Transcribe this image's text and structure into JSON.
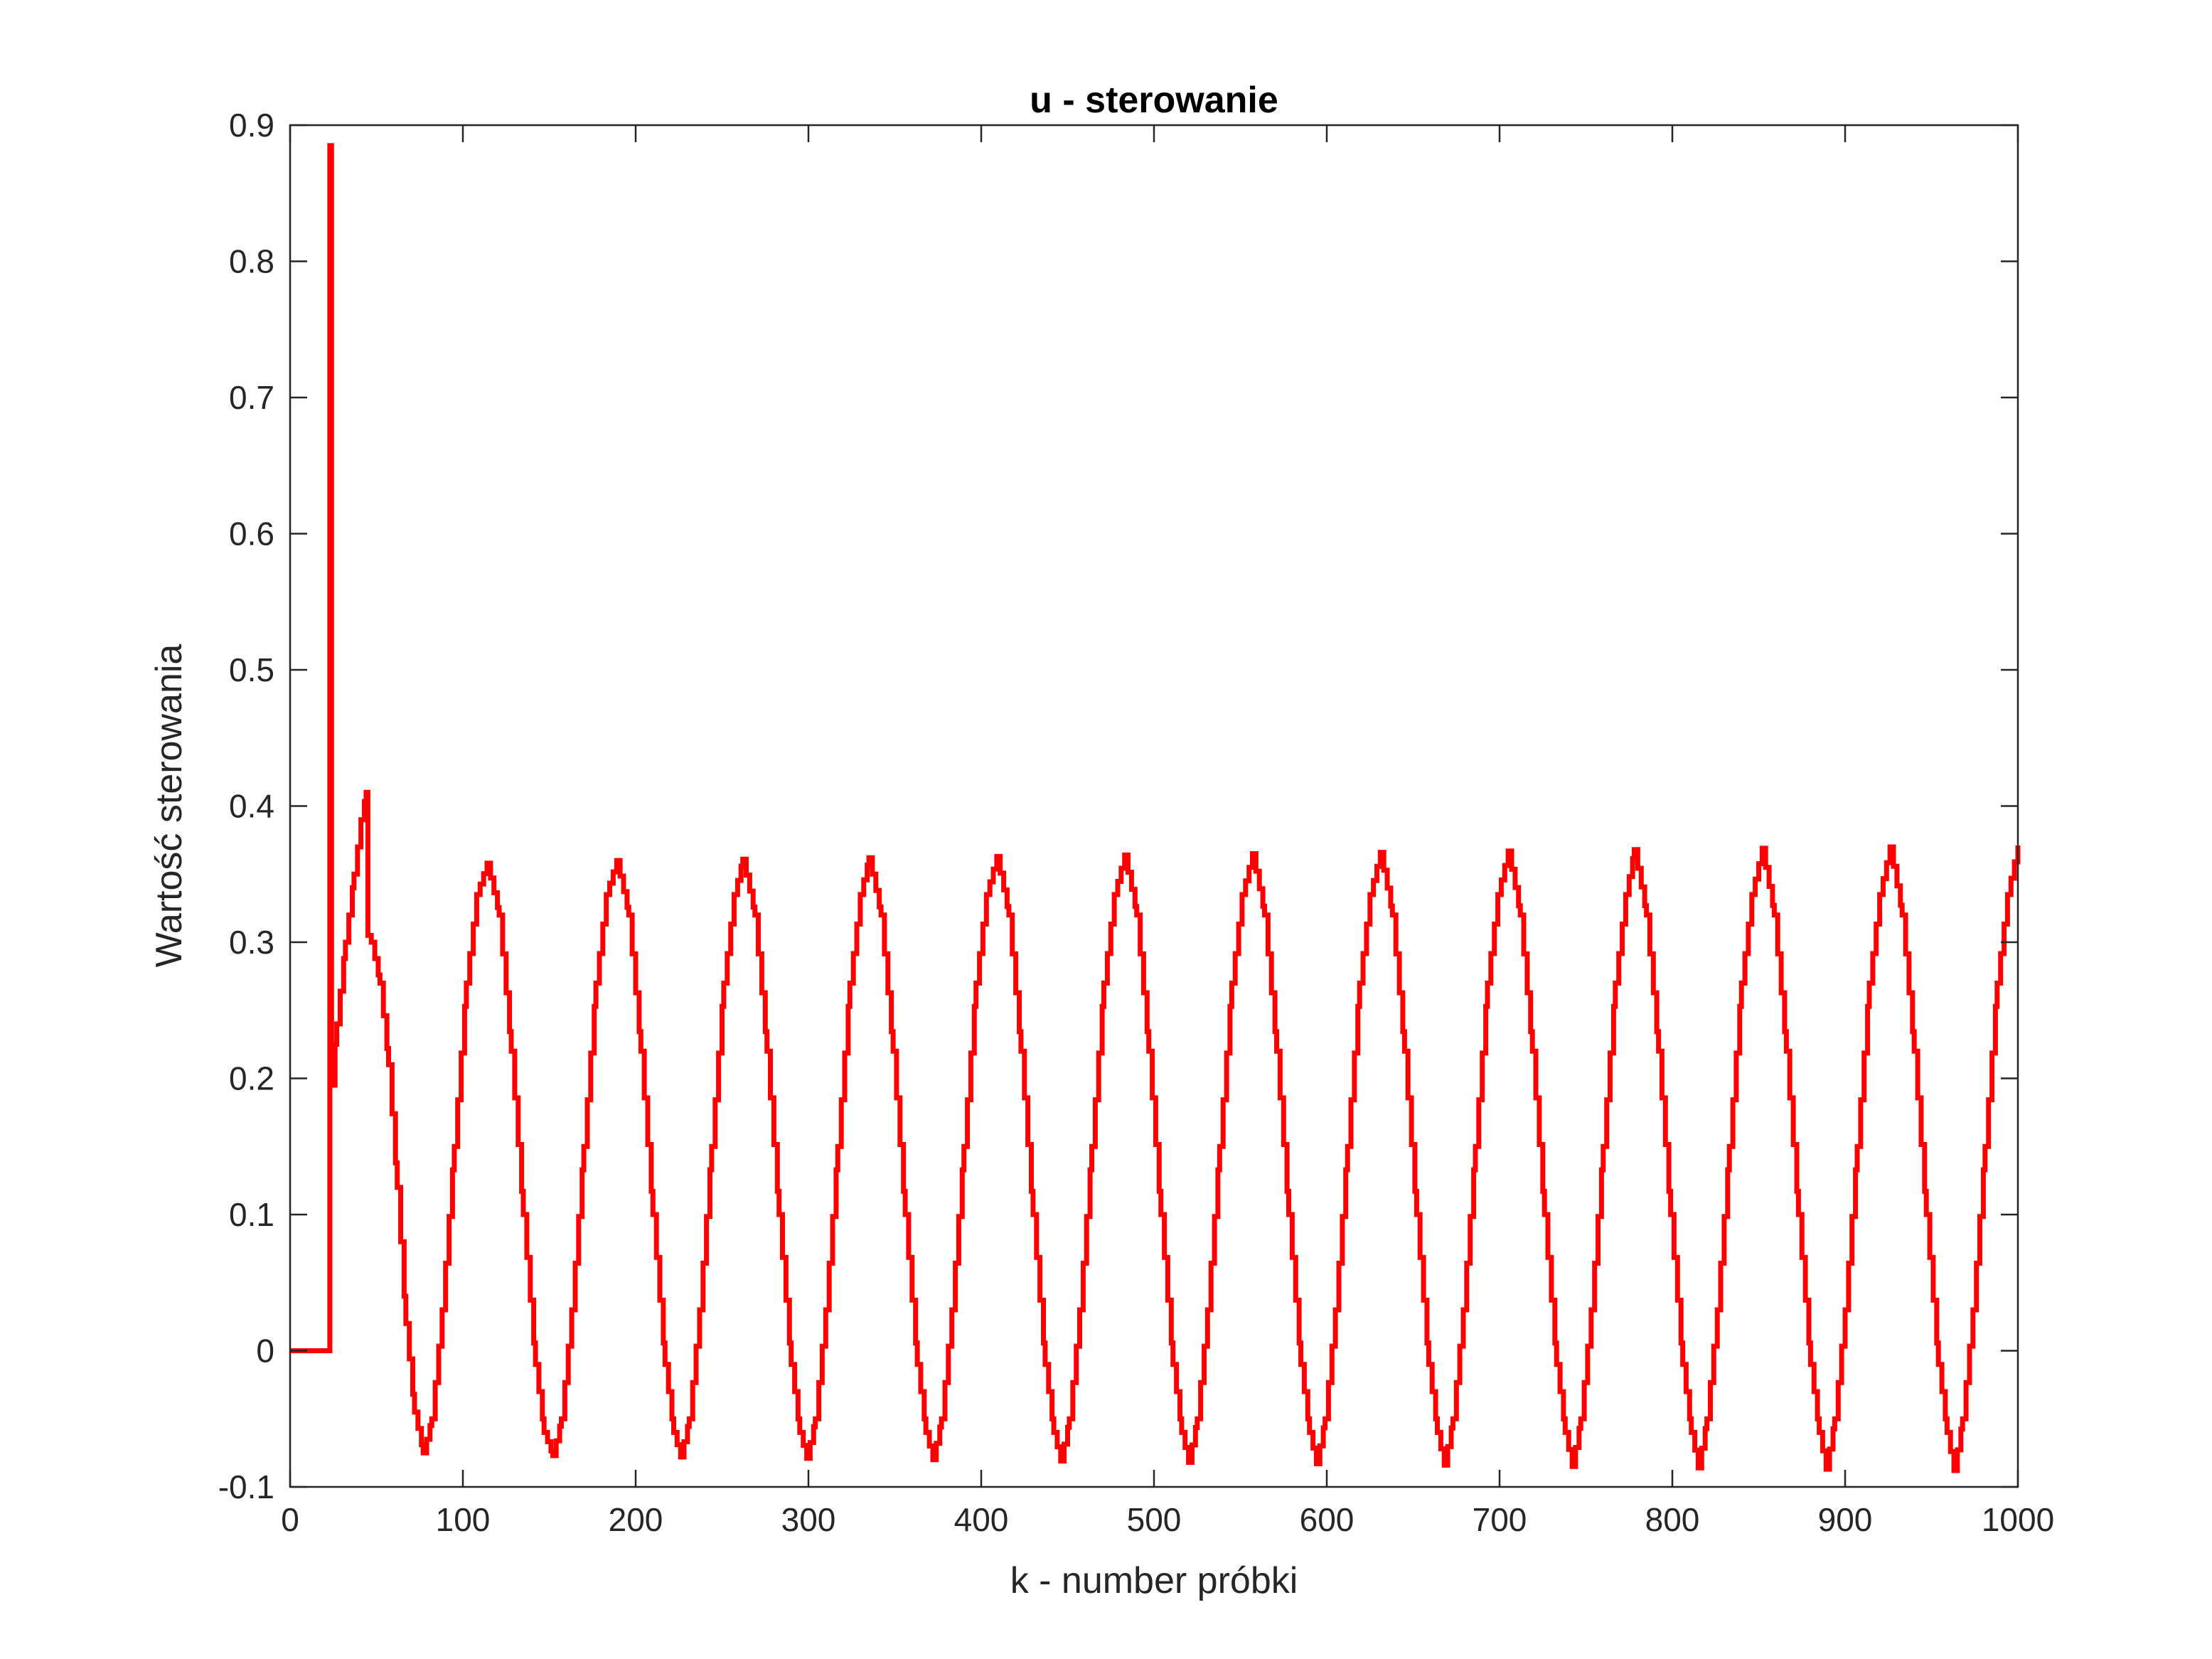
{
  "chart_data": {
    "type": "line",
    "title": "u - sterowanie",
    "xlabel": "k - number próbki",
    "ylabel": "Wartość sterowania",
    "xlim": [
      0,
      1000
    ],
    "ylim": [
      -0.1,
      0.9
    ],
    "xticks": [
      "0",
      "100",
      "200",
      "300",
      "400",
      "500",
      "600",
      "700",
      "800",
      "900",
      "1000"
    ],
    "yticks": [
      "-0.1",
      "0",
      "0.1",
      "0.2",
      "0.3",
      "0.4",
      "0.5",
      "0.6",
      "0.7",
      "0.8",
      "0.9"
    ],
    "grid": false,
    "line_color": "#ff0000",
    "series": [
      {
        "style": "stairs",
        "points": [
          [
            0,
            0
          ],
          [
            23,
            0
          ],
          [
            23,
            0.885
          ],
          [
            24,
            0.885
          ],
          [
            24,
            0.195
          ],
          [
            27,
            0.24
          ],
          [
            32,
            0.3
          ],
          [
            37,
            0.35
          ],
          [
            41,
            0.39
          ],
          [
            44,
            0.41
          ],
          [
            45,
            0.305
          ],
          [
            47,
            0.3
          ],
          [
            52,
            0.27
          ],
          [
            57,
            0.21
          ],
          [
            62,
            0.12
          ],
          [
            67,
            0.02
          ],
          [
            72,
            -0.045
          ],
          [
            77,
            -0.075
          ],
          [
            82,
            -0.05
          ],
          [
            88,
            0.03
          ],
          [
            95,
            0.15
          ],
          [
            102,
            0.27
          ],
          [
            108,
            0.335
          ],
          [
            114,
            0.358
          ],
          [
            121,
            0.32
          ],
          [
            128,
            0.22
          ],
          [
            135,
            0.1
          ],
          [
            142,
            -0.01
          ],
          [
            147,
            -0.06
          ],
          [
            152,
            -0.077
          ],
          [
            157,
            -0.05
          ],
          [
            163,
            0.03
          ],
          [
            170,
            0.15
          ],
          [
            177,
            0.27
          ],
          [
            183,
            0.335
          ],
          [
            189,
            0.36
          ],
          [
            196,
            0.32
          ],
          [
            203,
            0.22
          ],
          [
            210,
            0.1
          ],
          [
            217,
            -0.01
          ],
          [
            222,
            -0.06
          ],
          [
            226,
            -0.078
          ],
          [
            231,
            -0.05
          ],
          [
            237,
            0.03
          ],
          [
            244,
            0.15
          ],
          [
            251,
            0.27
          ],
          [
            257,
            0.335
          ],
          [
            262,
            0.361
          ],
          [
            269,
            0.32
          ],
          [
            276,
            0.22
          ],
          [
            283,
            0.1
          ],
          [
            290,
            -0.01
          ],
          [
            295,
            -0.06
          ],
          [
            299,
            -0.079
          ],
          [
            304,
            -0.05
          ],
          [
            310,
            0.03
          ],
          [
            317,
            0.15
          ],
          [
            324,
            0.27
          ],
          [
            330,
            0.335
          ],
          [
            335,
            0.362
          ],
          [
            342,
            0.32
          ],
          [
            349,
            0.22
          ],
          [
            356,
            0.1
          ],
          [
            363,
            -0.01
          ],
          [
            368,
            -0.06
          ],
          [
            372,
            -0.08
          ],
          [
            377,
            -0.05
          ],
          [
            383,
            0.03
          ],
          [
            390,
            0.15
          ],
          [
            397,
            0.27
          ],
          [
            403,
            0.335
          ],
          [
            409,
            0.363
          ],
          [
            416,
            0.32
          ],
          [
            423,
            0.22
          ],
          [
            430,
            0.1
          ],
          [
            437,
            -0.01
          ],
          [
            442,
            -0.06
          ],
          [
            446,
            -0.081
          ],
          [
            451,
            -0.05
          ],
          [
            457,
            0.03
          ],
          [
            464,
            0.15
          ],
          [
            471,
            0.27
          ],
          [
            477,
            0.335
          ],
          [
            483,
            0.364
          ],
          [
            490,
            0.32
          ],
          [
            497,
            0.22
          ],
          [
            504,
            0.1
          ],
          [
            511,
            -0.01
          ],
          [
            516,
            -0.06
          ],
          [
            520,
            -0.082
          ],
          [
            525,
            -0.05
          ],
          [
            531,
            0.03
          ],
          [
            538,
            0.15
          ],
          [
            545,
            0.27
          ],
          [
            551,
            0.335
          ],
          [
            557,
            0.365
          ],
          [
            564,
            0.32
          ],
          [
            571,
            0.22
          ],
          [
            578,
            0.1
          ],
          [
            585,
            -0.01
          ],
          [
            590,
            -0.06
          ],
          [
            594,
            -0.083
          ],
          [
            599,
            -0.05
          ],
          [
            605,
            0.03
          ],
          [
            612,
            0.15
          ],
          [
            619,
            0.27
          ],
          [
            625,
            0.335
          ],
          [
            631,
            0.366
          ],
          [
            638,
            0.32
          ],
          [
            645,
            0.22
          ],
          [
            652,
            0.1
          ],
          [
            659,
            -0.01
          ],
          [
            664,
            -0.06
          ],
          [
            668,
            -0.084
          ],
          [
            673,
            -0.05
          ],
          [
            679,
            0.03
          ],
          [
            686,
            0.15
          ],
          [
            693,
            0.27
          ],
          [
            699,
            0.335
          ],
          [
            705,
            0.367
          ],
          [
            712,
            0.32
          ],
          [
            719,
            0.22
          ],
          [
            726,
            0.1
          ],
          [
            733,
            -0.01
          ],
          [
            738,
            -0.06
          ],
          [
            742,
            -0.085
          ],
          [
            747,
            -0.05
          ],
          [
            753,
            0.03
          ],
          [
            760,
            0.15
          ],
          [
            767,
            0.27
          ],
          [
            773,
            0.335
          ],
          [
            778,
            0.368
          ],
          [
            785,
            0.32
          ],
          [
            792,
            0.22
          ],
          [
            799,
            0.1
          ],
          [
            806,
            -0.01
          ],
          [
            811,
            -0.06
          ],
          [
            815,
            -0.086
          ],
          [
            820,
            -0.05
          ],
          [
            826,
            0.03
          ],
          [
            833,
            0.15
          ],
          [
            840,
            0.27
          ],
          [
            846,
            0.335
          ],
          [
            852,
            0.369
          ],
          [
            859,
            0.32
          ],
          [
            866,
            0.22
          ],
          [
            873,
            0.1
          ],
          [
            880,
            -0.01
          ],
          [
            885,
            -0.06
          ],
          [
            889,
            -0.087
          ],
          [
            894,
            -0.05
          ],
          [
            900,
            0.03
          ],
          [
            907,
            0.15
          ],
          [
            914,
            0.27
          ],
          [
            920,
            0.335
          ],
          [
            926,
            0.37
          ],
          [
            933,
            0.32
          ],
          [
            940,
            0.22
          ],
          [
            947,
            0.1
          ],
          [
            954,
            -0.01
          ],
          [
            959,
            -0.06
          ],
          [
            963,
            -0.088
          ],
          [
            968,
            -0.05
          ],
          [
            974,
            0.03
          ],
          [
            981,
            0.15
          ],
          [
            988,
            0.27
          ],
          [
            994,
            0.335
          ],
          [
            1000,
            0.371
          ]
        ]
      }
    ]
  }
}
